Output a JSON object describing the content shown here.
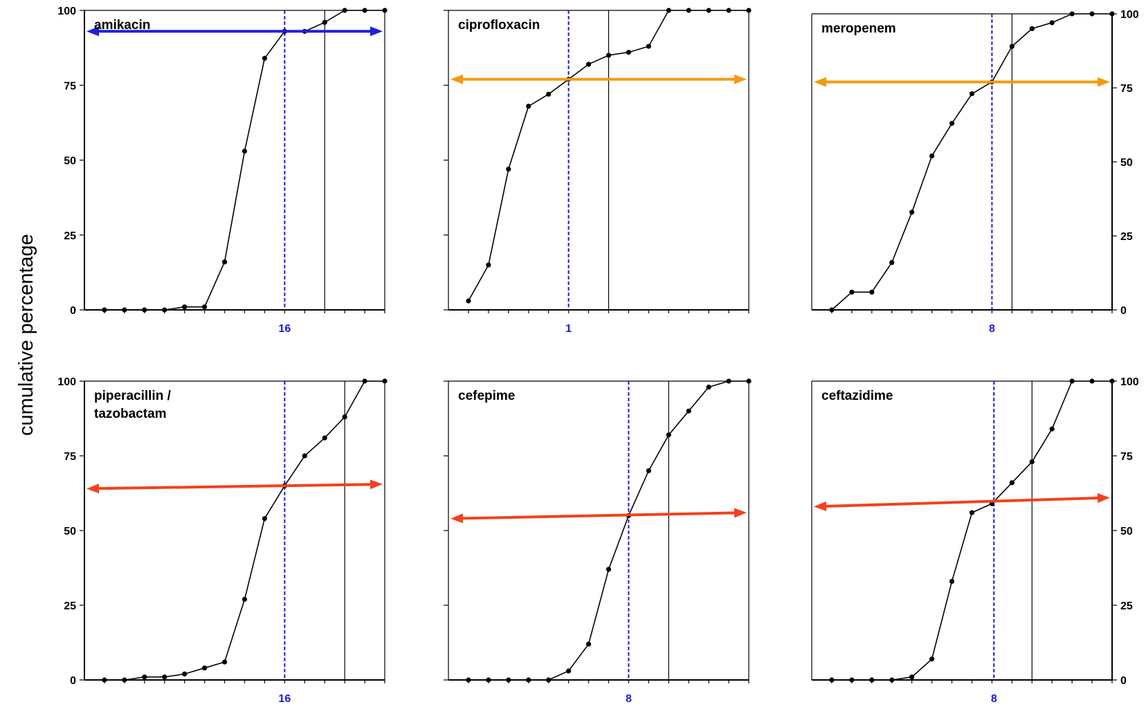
{
  "figure": {
    "ylabel": "cumulative percentage",
    "y_ticks": [
      "0",
      "25",
      "50",
      "75",
      "100"
    ]
  },
  "chart_data": [
    {
      "type": "line",
      "title": "amikacin",
      "title_lines": [
        "amikacin"
      ],
      "x": [
        1,
        2,
        3,
        4,
        5,
        6,
        7,
        8,
        9,
        10,
        11,
        12,
        13,
        14,
        15
      ],
      "values": [
        0,
        0,
        0,
        0,
        1,
        1,
        16,
        53,
        84,
        93,
        93,
        96,
        100,
        100,
        100
      ],
      "ylim": [
        0,
        100
      ],
      "xlim": [
        0,
        15
      ],
      "x_tick_count": 15,
      "breakpoint": {
        "x": 10,
        "label": "16"
      },
      "second_line_x": 12,
      "arrow": {
        "y_left": 93,
        "y_right": 93,
        "color": "#1f1fe0"
      },
      "y_axis_side": "left"
    },
    {
      "type": "line",
      "title": "ciprofloxacin",
      "title_lines": [
        "ciprofloxacin"
      ],
      "x": [
        1,
        2,
        3,
        4,
        5,
        6,
        7,
        8,
        9,
        10,
        11,
        12,
        13,
        14,
        15
      ],
      "values": [
        3,
        15,
        47,
        68,
        72,
        77,
        82,
        85,
        86,
        88,
        100,
        100,
        100,
        100,
        100
      ],
      "ylim": [
        0,
        100
      ],
      "xlim": [
        0,
        15
      ],
      "x_tick_count": 15,
      "breakpoint": {
        "x": 6,
        "label": "1"
      },
      "second_line_x": 8,
      "arrow": {
        "y_left": 77,
        "y_right": 77,
        "color": "#f59a0c"
      },
      "y_axis_side": "none"
    },
    {
      "type": "line",
      "title": "meropenem",
      "title_lines": [
        "meropenem"
      ],
      "x": [
        1,
        2,
        3,
        4,
        5,
        6,
        7,
        8,
        9,
        10,
        11,
        12,
        13,
        14,
        15
      ],
      "values": [
        0,
        6,
        6,
        16,
        33,
        52,
        63,
        73,
        77,
        89,
        95,
        97,
        100,
        100,
        100
      ],
      "ylim": [
        0,
        100
      ],
      "xlim": [
        0,
        15
      ],
      "x_tick_count": 15,
      "breakpoint": {
        "x": 9,
        "label": "8"
      },
      "second_line_x": 10,
      "arrow": {
        "y_left": 77,
        "y_right": 77,
        "color": "#f59a0c"
      },
      "y_axis_side": "right"
    },
    {
      "type": "line",
      "title": "piperacillin / tazobactam",
      "title_lines": [
        "piperacillin /",
        "tazobactam"
      ],
      "x": [
        1,
        2,
        3,
        4,
        5,
        6,
        7,
        8,
        9,
        10,
        11,
        12,
        13,
        14,
        15
      ],
      "values": [
        0,
        0,
        1,
        1,
        2,
        4,
        6,
        27,
        54,
        65,
        75,
        81,
        88,
        100,
        100
      ],
      "ylim": [
        0,
        100
      ],
      "xlim": [
        0,
        15
      ],
      "x_tick_count": 15,
      "breakpoint": {
        "x": 10,
        "label": "16"
      },
      "second_line_x": 13,
      "arrow": {
        "y_left": 64,
        "y_right": 65.5,
        "color": "#f5401a"
      },
      "y_axis_side": "left"
    },
    {
      "type": "line",
      "title": "cefepime",
      "title_lines": [
        "cefepime"
      ],
      "x": [
        1,
        2,
        3,
        4,
        5,
        6,
        7,
        8,
        9,
        10,
        11,
        12,
        13,
        14,
        15
      ],
      "values": [
        0,
        0,
        0,
        0,
        0,
        3,
        12,
        37,
        55,
        70,
        82,
        90,
        98,
        100,
        100
      ],
      "ylim": [
        0,
        100
      ],
      "xlim": [
        0,
        15
      ],
      "x_tick_count": 15,
      "breakpoint": {
        "x": 9,
        "label": "8"
      },
      "second_line_x": 11,
      "arrow": {
        "y_left": 54,
        "y_right": 56,
        "color": "#f5401a"
      },
      "y_axis_side": "none"
    },
    {
      "type": "line",
      "title": "ceftazidime",
      "title_lines": [
        "ceftazidime"
      ],
      "x": [
        1,
        2,
        3,
        4,
        5,
        6,
        7,
        8,
        9,
        10,
        11,
        12,
        13,
        14,
        15
      ],
      "values": [
        0,
        0,
        0,
        0,
        1,
        7,
        33,
        56,
        59,
        66,
        73,
        84,
        100,
        100,
        100
      ],
      "ylim": [
        0,
        100
      ],
      "xlim": [
        0,
        15
      ],
      "x_tick_count": 15,
      "breakpoint": {
        "x": 9.1,
        "label": "8"
      },
      "second_line_x": 11,
      "arrow": {
        "y_left": 58,
        "y_right": 61,
        "color": "#f5401a"
      },
      "y_axis_side": "right"
    }
  ],
  "colors": {
    "data_line": "#000000",
    "breakpoint_line": "#1a1adb",
    "breakpoint_label": "#1a1adb",
    "axis": "#000000"
  }
}
